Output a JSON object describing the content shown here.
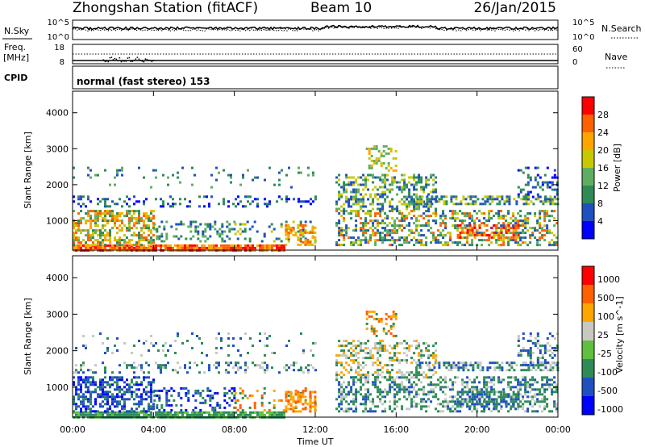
{
  "header": {
    "station": "Zhongshan Station (fitACF)",
    "beam": "Beam 10",
    "date": "26/Jan/2015",
    "mode": "normal (fast stereo) 153"
  },
  "panels": {
    "nsky": {
      "label": "N.Sky",
      "ticks": [
        "10^5",
        "10^0"
      ],
      "right_label": "N.Search",
      "right_ticks": [
        "10^5",
        "10^0"
      ]
    },
    "freq": {
      "label_top": "Freq.",
      "label_bottom": "[MHz]",
      "ticks": [
        "18",
        "8"
      ],
      "right_label": "Nave",
      "right_ticks": [
        "60",
        "0"
      ]
    },
    "cpid": {
      "label": "CPID"
    }
  },
  "chart_data": [
    {
      "type": "heatmap",
      "title": "",
      "xlabel": "Time UT",
      "ylabel": "Slant Range [km]",
      "x_ticks": [
        "00:00",
        "04:00",
        "08:00",
        "12:00",
        "16:00",
        "20:00",
        "00:00"
      ],
      "x_range_hours": [
        0,
        24
      ],
      "y_ticks": [
        1000,
        2000,
        3000,
        4000
      ],
      "ylim": [
        180,
        4600
      ],
      "colorbar": {
        "label": "Power [dB]",
        "ticks": [
          "4",
          "8",
          "12",
          "16",
          "20",
          "24",
          "28"
        ],
        "colors": [
          "#0000ff",
          "#2050c0",
          "#2e8b57",
          "#5fae5f",
          "#c8c800",
          "#ffa500",
          "#ff6000",
          "#ff0000"
        ]
      }
    },
    {
      "type": "heatmap",
      "title": "",
      "xlabel": "Time UT",
      "ylabel": "Slant Range [km]",
      "x_ticks": [
        "00:00",
        "04:00",
        "08:00",
        "12:00",
        "16:00",
        "20:00",
        "00:00"
      ],
      "x_range_hours": [
        0,
        24
      ],
      "y_ticks": [
        1000,
        2000,
        3000,
        4000
      ],
      "ylim": [
        180,
        4600
      ],
      "colorbar": {
        "label": "Velocity [m s^-1]",
        "ticks": [
          "1000",
          "500",
          "100",
          "25",
          "-25",
          "-100",
          "-500",
          "-1000"
        ],
        "colors": [
          "#0000ff",
          "#2050c0",
          "#2e8b57",
          "#5fbf3f",
          "#c8c8c0",
          "#ffa500",
          "#ff6000",
          "#ff0000"
        ]
      }
    }
  ],
  "axes": {
    "xlabel": "Time UT"
  }
}
